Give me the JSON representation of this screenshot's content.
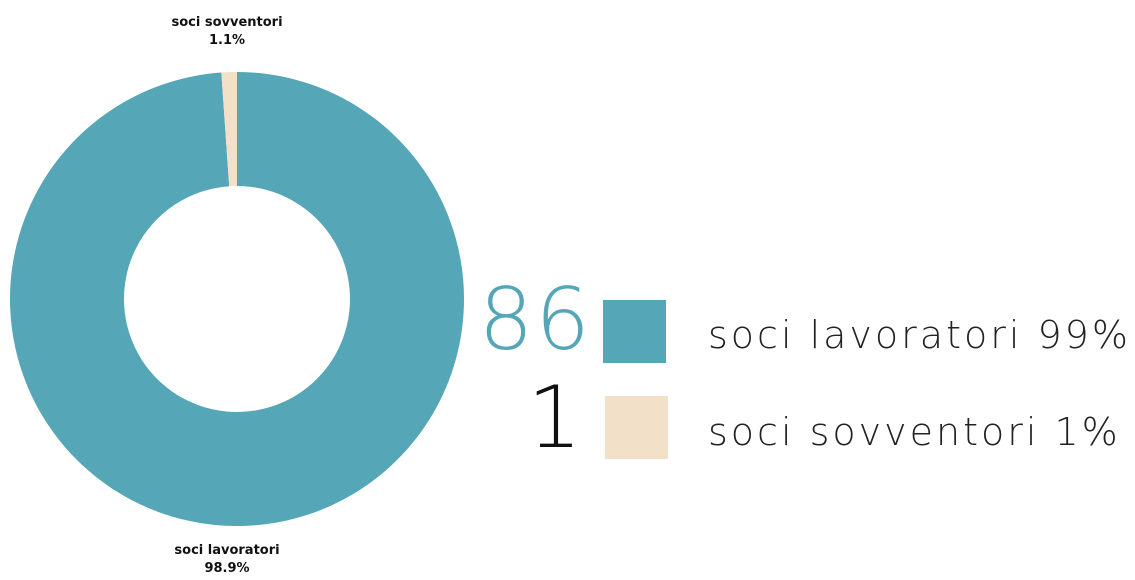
{
  "chart_data": {
    "type": "pie",
    "donut": true,
    "categories": [
      "soci lavoratori",
      "soci sovventori"
    ],
    "values": [
      98.9,
      1.1
    ],
    "counts": [
      86,
      1
    ],
    "colors": [
      "#55a6b6",
      "#f2e0c8"
    ],
    "slice_labels": [
      {
        "name": "soci lavoratori",
        "pct": "98.9%"
      },
      {
        "name": "soci sovventori",
        "pct": "1.1%"
      }
    ]
  },
  "legend": [
    {
      "count": "86",
      "text": "soci lavoratori 99%",
      "color": "#55a6b6",
      "count_color": "#55a6b6"
    },
    {
      "count": "1",
      "text": "soci sovventori 1%",
      "color": "#f2e0c8",
      "count_color": "#111111"
    }
  ]
}
